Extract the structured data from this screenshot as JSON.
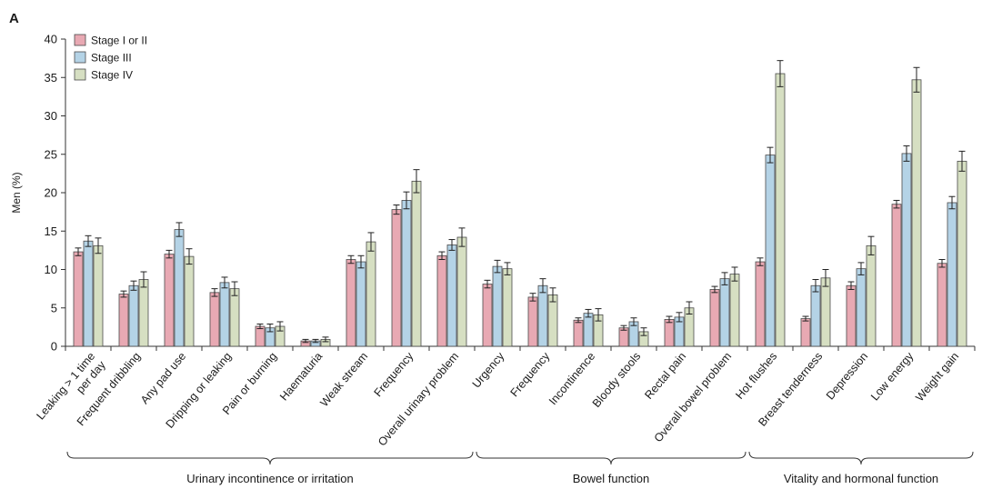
{
  "panel_label": "A",
  "chart_data": {
    "type": "bar",
    "ylabel": "Men (%)",
    "ylim": [
      0,
      40
    ],
    "yticks": [
      0,
      5,
      10,
      15,
      20,
      25,
      30,
      35,
      40
    ],
    "legend_position": "top-left",
    "categories": [
      [
        "Leaking > 1 time",
        "per day"
      ],
      [
        "Frequent dribbling"
      ],
      [
        "Any pad use"
      ],
      [
        "Dripping or leaking"
      ],
      [
        "Pain or burning"
      ],
      [
        "Haematuria"
      ],
      [
        "Weak stream"
      ],
      [
        "Frequency"
      ],
      [
        "Overall urinary problem"
      ],
      [
        "Urgency"
      ],
      [
        "Frequency"
      ],
      [
        "Incontinence"
      ],
      [
        "Bloody stools"
      ],
      [
        "Rectal pain"
      ],
      [
        "Overall bowel problem"
      ],
      [
        "Hot flushes"
      ],
      [
        "Breast tenderness"
      ],
      [
        "Depression"
      ],
      [
        "Low energy"
      ],
      [
        "Weight gain"
      ]
    ],
    "series": [
      {
        "name": "Stage I or II",
        "color": "#e8a9b3",
        "values": [
          12.3,
          6.8,
          12.0,
          7.0,
          2.6,
          0.7,
          11.3,
          17.8,
          11.8,
          8.1,
          6.4,
          3.4,
          2.4,
          3.5,
          7.4,
          11.0,
          3.6,
          7.9,
          18.5,
          10.8
        ],
        "errors": [
          0.5,
          0.4,
          0.5,
          0.5,
          0.3,
          0.2,
          0.5,
          0.6,
          0.5,
          0.5,
          0.5,
          0.3,
          0.3,
          0.4,
          0.4,
          0.5,
          0.3,
          0.5,
          0.5,
          0.5
        ]
      },
      {
        "name": "Stage III",
        "color": "#b4d3e6",
        "values": [
          13.7,
          7.9,
          15.2,
          8.3,
          2.4,
          0.7,
          11.0,
          19.0,
          13.2,
          10.4,
          7.9,
          4.3,
          3.2,
          3.8,
          8.8,
          24.9,
          7.9,
          10.1,
          25.1,
          18.7
        ],
        "errors": [
          0.7,
          0.6,
          0.9,
          0.7,
          0.5,
          0.2,
          0.8,
          1.1,
          0.7,
          0.8,
          0.9,
          0.5,
          0.5,
          0.6,
          0.8,
          1.0,
          0.8,
          0.8,
          1.0,
          0.8
        ]
      },
      {
        "name": "Stage IV",
        "color": "#d6dfc2",
        "values": [
          13.1,
          8.7,
          11.7,
          7.5,
          2.6,
          0.9,
          13.6,
          21.5,
          14.2,
          10.1,
          6.7,
          4.1,
          1.9,
          5.0,
          9.4,
          35.5,
          8.9,
          13.1,
          34.7,
          24.1
        ],
        "errors": [
          1.0,
          1.0,
          1.0,
          0.9,
          0.6,
          0.3,
          1.2,
          1.5,
          1.2,
          0.8,
          0.9,
          0.8,
          0.5,
          0.8,
          0.9,
          1.7,
          1.1,
          1.2,
          1.6,
          1.3
        ]
      }
    ],
    "groups": [
      {
        "label": "Urinary incontinence or irritation",
        "from": 0,
        "to": 8
      },
      {
        "label": "Bowel function",
        "from": 9,
        "to": 14
      },
      {
        "label": "Vitality and hormonal function",
        "from": 15,
        "to": 19
      }
    ]
  }
}
